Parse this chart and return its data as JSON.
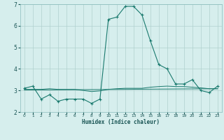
{
  "xlabel": "Humidex (Indice chaleur)",
  "background_color": "#d6eeed",
  "grid_color": "#b0d0ce",
  "line_color": "#1a7a6e",
  "xlim": [
    -0.5,
    23.5
  ],
  "ylim": [
    2,
    7
  ],
  "yticks": [
    2,
    3,
    4,
    5,
    6,
    7
  ],
  "xticks": [
    0,
    1,
    2,
    3,
    4,
    5,
    6,
    7,
    8,
    9,
    10,
    11,
    12,
    13,
    14,
    15,
    16,
    17,
    18,
    19,
    20,
    21,
    22,
    23
  ],
  "series1_x": [
    0,
    1,
    2,
    3,
    4,
    5,
    6,
    7,
    8,
    9,
    10,
    11,
    12,
    13,
    14,
    15,
    16,
    17,
    18,
    19,
    20,
    21,
    22,
    23
  ],
  "series1_y": [
    3.1,
    3.2,
    2.6,
    2.8,
    2.5,
    2.6,
    2.6,
    2.6,
    2.4,
    2.6,
    6.3,
    6.4,
    6.9,
    6.9,
    6.5,
    5.3,
    4.2,
    4.0,
    3.3,
    3.3,
    3.5,
    3.0,
    2.9,
    3.2
  ],
  "series2_x": [
    0,
    1,
    2,
    3,
    4,
    5,
    6,
    7,
    8,
    9,
    10,
    11,
    12,
    13,
    14,
    15,
    16,
    17,
    18,
    19,
    20,
    21,
    22,
    23
  ],
  "series2_y": [
    3.05,
    3.05,
    3.05,
    3.08,
    3.05,
    3.05,
    3.05,
    3.0,
    2.95,
    2.98,
    3.05,
    3.08,
    3.1,
    3.1,
    3.1,
    3.15,
    3.18,
    3.2,
    3.18,
    3.18,
    3.15,
    3.12,
    3.08,
    3.08
  ],
  "series3_x": [
    0,
    23
  ],
  "series3_y": [
    3.02,
    3.08
  ]
}
